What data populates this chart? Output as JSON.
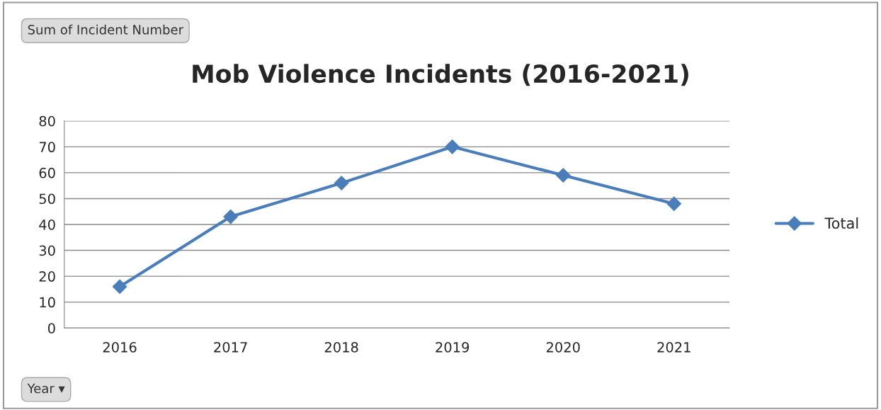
{
  "chart_data": {
    "type": "line",
    "title": "Mob Violence Incidents (2016-2021)",
    "categories": [
      "2016",
      "2017",
      "2018",
      "2019",
      "2020",
      "2021"
    ],
    "series": [
      {
        "name": "Total",
        "color": "#4a7ebb",
        "values": [
          16,
          43,
          56,
          70,
          59,
          48
        ]
      }
    ],
    "ylim": [
      0,
      80
    ],
    "yticks": [
      0,
      10,
      20,
      30,
      40,
      50,
      60,
      70,
      80
    ],
    "grid": "y",
    "legend": "right",
    "marker": "diamond",
    "line_style": "solid",
    "annotations": [
      "Sum of Incident Number",
      "Year ▾"
    ]
  }
}
